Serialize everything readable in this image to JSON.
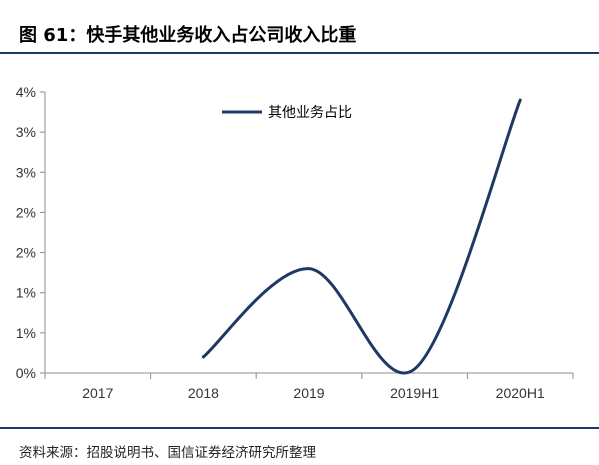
{
  "title": "图 61：快手其他业务收入占公司收入比重",
  "source": "资料来源：招股说明书、国信证券经济研究所整理",
  "chart_data": {
    "type": "line",
    "categories": [
      "2017",
      "2018",
      "2019",
      "2019H1",
      "2020H1"
    ],
    "y_tick_labels": [
      "0%",
      "1%",
      "1%",
      "2%",
      "2%",
      "3%",
      "3%",
      "4%"
    ],
    "ylim": [
      0,
      3.5
    ],
    "grid": false,
    "legend_position": "top-center",
    "series": [
      {
        "name": "其他业务占比",
        "color": "#1f3864",
        "values": [
          null,
          0.2,
          1.3,
          0.05,
          3.4
        ]
      }
    ]
  }
}
